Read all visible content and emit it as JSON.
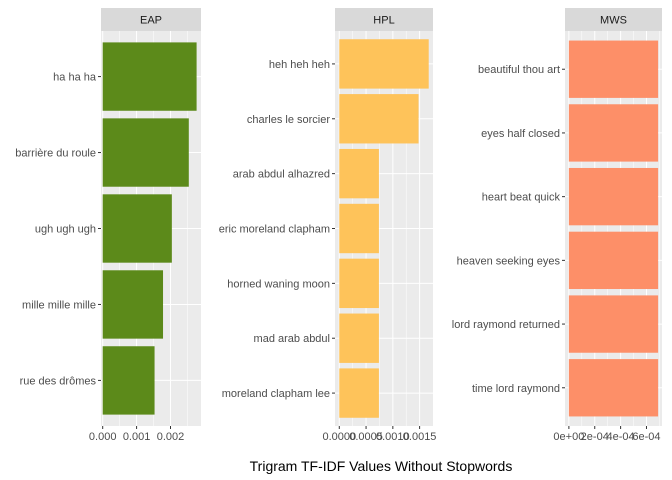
{
  "chart_data": {
    "type": "bar",
    "orientation": "horizontal",
    "xlabel": "Trigram TF-IDF Values Without Stopwords",
    "ylabel": "",
    "title": "",
    "grid": true,
    "legend": "none",
    "facets": [
      {
        "name": "EAP",
        "color": "#5c8a1a",
        "categories": [
          "ha ha ha",
          "barrière du roule",
          "ugh ugh ugh",
          "mille mille mille",
          "rue des drômes"
        ],
        "values": [
          0.00277,
          0.00254,
          0.00204,
          0.00178,
          0.00153
        ],
        "xlim": [
          -5e-05,
          0.0029
        ],
        "ticks": [
          0.0,
          0.001,
          0.002
        ],
        "tick_labels": [
          "0.000",
          "0.001",
          "0.002"
        ]
      },
      {
        "name": "HPL",
        "color": "#fec35a",
        "categories": [
          "heh heh heh",
          "charles le sorcier",
          "arab abdul alhazred",
          "eric moreland clapham",
          "horned waning moon",
          "mad arab abdul",
          "moreland clapham lee"
        ],
        "values": [
          0.00167,
          0.00148,
          0.00074,
          0.00074,
          0.00074,
          0.00074,
          0.00074
        ],
        "xlim": [
          -8e-05,
          0.00175
        ],
        "ticks": [
          0.0,
          0.0005,
          0.001,
          0.0015
        ],
        "tick_labels": [
          "0.0000",
          "0.0005",
          "0.0010",
          "0.0015"
        ]
      },
      {
        "name": "MWS",
        "color": "#fd8f68",
        "categories": [
          "beautiful thou art",
          "eyes half closed",
          "heart beat quick",
          "heaven seeking eyes",
          "lord raymond returned",
          "time lord raymond"
        ],
        "values": [
          0.00069,
          0.00069,
          0.00069,
          0.00069,
          0.00069,
          0.00069
        ],
        "xlim": [
          -3e-05,
          0.00072
        ],
        "ticks": [
          0.0,
          0.0002,
          0.0004,
          0.0006
        ],
        "tick_labels": [
          "0e+00",
          "2e-04",
          "4e-04",
          "6e-04"
        ]
      }
    ]
  },
  "colors": {
    "panel_background": "#ebebeb",
    "strip_background": "#d9d9d9",
    "gridline": "#ffffff"
  }
}
